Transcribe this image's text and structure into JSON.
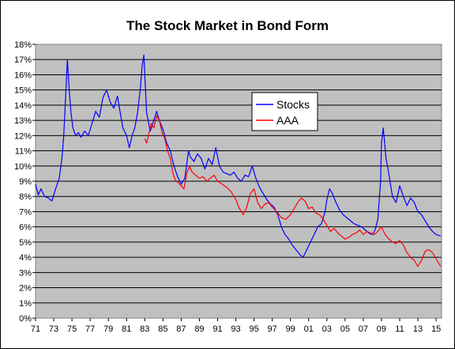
{
  "chart_data": {
    "type": "line",
    "title": "The Stock Market in Bond Form",
    "xlabel": "",
    "ylabel": "",
    "xlim": [
      1971,
      2015.6
    ],
    "ylim": [
      0,
      18
    ],
    "x_tick_labels": [
      "71",
      "73",
      "75",
      "77",
      "79",
      "81",
      "83",
      "85",
      "87",
      "89",
      "91",
      "93",
      "95",
      "97",
      "99",
      "01",
      "03",
      "05",
      "07",
      "09",
      "11",
      "13",
      "15"
    ],
    "y_tick_labels": [
      "0%",
      "1%",
      "2%",
      "3%",
      "4%",
      "5%",
      "6%",
      "7%",
      "8%",
      "9%",
      "10%",
      "11%",
      "12%",
      "13%",
      "14%",
      "15%",
      "16%",
      "17%",
      "18%"
    ],
    "grid": "horizontal",
    "plot_background": "#c0c0c0",
    "legend_placement": "center-top",
    "series": [
      {
        "name": "Stocks",
        "color": "#0000ff",
        "x": [
          1971.0,
          1971.3,
          1971.6,
          1972.0,
          1972.4,
          1972.8,
          1973.2,
          1973.6,
          1973.9,
          1974.1,
          1974.3,
          1974.5,
          1974.7,
          1974.9,
          1975.1,
          1975.4,
          1975.7,
          1976.0,
          1976.4,
          1976.8,
          1977.2,
          1977.6,
          1978.0,
          1978.4,
          1978.8,
          1979.2,
          1979.6,
          1980.0,
          1980.3,
          1980.6,
          1981.0,
          1981.3,
          1981.6,
          1981.9,
          1982.2,
          1982.5,
          1982.7,
          1982.9,
          1983.2,
          1983.6,
          1984.0,
          1984.3,
          1984.6,
          1985.0,
          1985.4,
          1985.8,
          1986.2,
          1986.6,
          1987.0,
          1987.4,
          1987.8,
          1988.0,
          1988.4,
          1988.8,
          1989.2,
          1989.6,
          1990.0,
          1990.4,
          1990.8,
          1991.2,
          1991.6,
          1992.0,
          1992.4,
          1992.8,
          1993.2,
          1993.6,
          1994.0,
          1994.4,
          1994.8,
          1995.2,
          1995.6,
          1996.0,
          1996.4,
          1996.8,
          1997.2,
          1997.6,
          1998.0,
          1998.4,
          1998.8,
          1999.2,
          1999.6,
          2000.0,
          2000.4,
          2000.8,
          2001.2,
          2001.6,
          2002.0,
          2002.4,
          2002.8,
          2003.0,
          2003.3,
          2003.6,
          2004.0,
          2004.4,
          2004.8,
          2005.2,
          2005.6,
          2006.0,
          2006.4,
          2006.8,
          2007.2,
          2007.6,
          2008.0,
          2008.3,
          2008.6,
          2008.9,
          2009.0,
          2009.2,
          2009.5,
          2009.8,
          2010.2,
          2010.6,
          2011.0,
          2011.4,
          2011.8,
          2012.2,
          2012.6,
          2013.0,
          2013.4,
          2013.8,
          2014.2,
          2014.6,
          2015.0,
          2015.5
        ],
        "y": [
          8.8,
          8.1,
          8.5,
          8.0,
          7.9,
          7.7,
          8.5,
          9.2,
          10.5,
          12.0,
          14.5,
          17.0,
          15.0,
          13.5,
          12.5,
          12.0,
          12.2,
          11.9,
          12.3,
          12.0,
          12.8,
          13.6,
          13.2,
          14.5,
          15.0,
          14.2,
          13.8,
          14.6,
          13.5,
          12.5,
          12.0,
          11.2,
          12.0,
          12.5,
          13.5,
          15.0,
          16.5,
          17.3,
          13.5,
          12.3,
          13.0,
          13.6,
          13.0,
          12.4,
          11.5,
          11.0,
          10.0,
          9.3,
          8.8,
          9.2,
          11.0,
          10.6,
          10.3,
          10.8,
          10.5,
          9.8,
          10.5,
          10.1,
          11.2,
          10.0,
          9.6,
          9.5,
          9.4,
          9.6,
          9.2,
          9.0,
          9.4,
          9.3,
          10.0,
          9.2,
          8.6,
          8.2,
          7.8,
          7.5,
          7.3,
          6.8,
          6.0,
          5.5,
          5.2,
          4.8,
          4.5,
          4.2,
          4.0,
          4.5,
          5.0,
          5.5,
          6.0,
          6.2,
          7.0,
          7.8,
          8.5,
          8.2,
          7.6,
          7.1,
          6.8,
          6.6,
          6.4,
          6.2,
          6.1,
          6.0,
          5.8,
          5.6,
          5.5,
          5.8,
          6.5,
          9.0,
          11.5,
          12.5,
          10.5,
          9.5,
          8.0,
          7.6,
          8.7,
          8.0,
          7.4,
          7.9,
          7.6,
          7.0,
          6.8,
          6.4,
          6.0,
          5.7,
          5.5,
          5.4
        ]
      },
      {
        "name": "AAA",
        "color": "#ff0000",
        "x": [
          1983.0,
          1983.2,
          1983.4,
          1983.7,
          1984.0,
          1984.3,
          1984.6,
          1984.9,
          1985.2,
          1985.5,
          1985.8,
          1986.1,
          1986.4,
          1986.7,
          1987.0,
          1987.3,
          1987.6,
          1987.9,
          1988.2,
          1988.6,
          1989.0,
          1989.4,
          1989.8,
          1990.2,
          1990.6,
          1991.0,
          1991.5,
          1992.0,
          1992.5,
          1993.0,
          1993.4,
          1993.8,
          1994.2,
          1994.6,
          1995.0,
          1995.4,
          1995.8,
          1996.2,
          1996.6,
          1997.0,
          1997.5,
          1998.0,
          1998.5,
          1999.0,
          1999.4,
          1999.8,
          2000.2,
          2000.6,
          2001.0,
          2001.4,
          2001.8,
          2002.2,
          2002.6,
          2003.0,
          2003.4,
          2003.8,
          2004.2,
          2004.6,
          2005.0,
          2005.4,
          2005.8,
          2006.2,
          2006.6,
          2007.0,
          2007.4,
          2007.8,
          2008.2,
          2008.6,
          2009.0,
          2009.4,
          2009.8,
          2010.2,
          2010.6,
          2011.0,
          2011.4,
          2011.8,
          2012.2,
          2012.6,
          2013.0,
          2013.4,
          2013.8,
          2014.2,
          2014.6,
          2015.0,
          2015.5
        ],
        "y": [
          11.8,
          11.5,
          12.0,
          12.8,
          12.5,
          13.3,
          13.0,
          12.2,
          11.8,
          11.0,
          10.5,
          9.5,
          9.0,
          8.9,
          8.7,
          8.5,
          9.5,
          10.0,
          9.6,
          9.4,
          9.2,
          9.3,
          9.0,
          9.2,
          9.4,
          9.0,
          8.8,
          8.6,
          8.3,
          7.8,
          7.2,
          6.8,
          7.3,
          8.2,
          8.5,
          7.6,
          7.2,
          7.5,
          7.6,
          7.3,
          7.0,
          6.6,
          6.5,
          6.8,
          7.2,
          7.6,
          7.9,
          7.7,
          7.2,
          7.3,
          6.9,
          6.8,
          6.5,
          6.1,
          5.7,
          5.9,
          5.6,
          5.4,
          5.2,
          5.3,
          5.5,
          5.6,
          5.8,
          5.5,
          5.7,
          5.6,
          5.5,
          5.7,
          6.0,
          5.5,
          5.2,
          5.0,
          4.9,
          5.1,
          4.8,
          4.3,
          4.0,
          3.8,
          3.4,
          3.8,
          4.4,
          4.5,
          4.3,
          3.9,
          3.4
        ]
      }
    ]
  }
}
